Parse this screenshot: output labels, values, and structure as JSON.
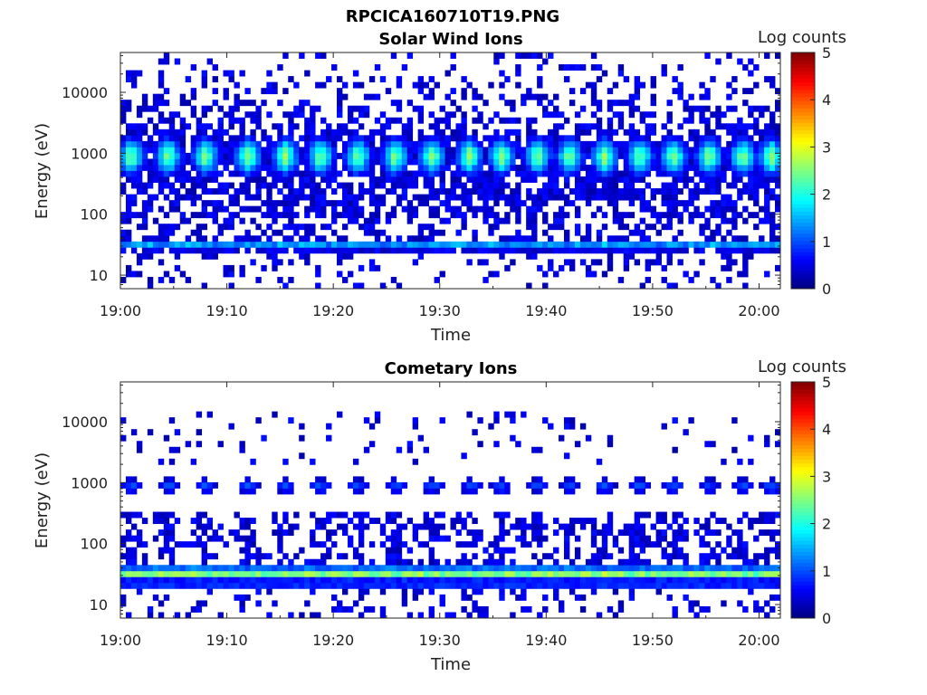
{
  "figure": {
    "title": "RPCICA160710T19.PNG"
  },
  "chart_data": [
    {
      "type": "heatmap",
      "title": "Solar Wind Ions",
      "xlabel": "Time",
      "ylabel": "Energy (eV)",
      "x_range": [
        "19:00",
        "20:02"
      ],
      "x_ticks": [
        "19:00",
        "19:10",
        "19:20",
        "19:30",
        "19:40",
        "19:50",
        "20:00"
      ],
      "y_scale": "log",
      "y_range": [
        6,
        45000
      ],
      "y_ticks": [
        "10",
        "100",
        "1000",
        "10000"
      ],
      "colorbar": {
        "label": "Log counts",
        "range": [
          0,
          5
        ],
        "ticks": [
          "0",
          "1",
          "2",
          "3",
          "4",
          "5"
        ],
        "colormap": "jet"
      },
      "pulse_times_min": [
        1,
        4.5,
        8,
        12,
        15.5,
        18.8,
        22.3,
        25.8,
        29.3,
        32.8,
        35.8,
        39.2,
        42.2,
        45.5,
        48.8,
        52,
        55.3,
        58.5,
        61.2
      ],
      "bands": [
        {
          "name": "solar wind peak",
          "center_eV": 900,
          "peak_log_counts": 2.5
        },
        {
          "name": "low energy band",
          "center_eV": 32,
          "peak_log_counts": 1.6
        }
      ]
    },
    {
      "type": "heatmap",
      "title": "Cometary Ions",
      "xlabel": "Time",
      "ylabel": "Energy (eV)",
      "x_range": [
        "19:00",
        "20:02"
      ],
      "x_ticks": [
        "19:00",
        "19:10",
        "19:20",
        "19:30",
        "19:40",
        "19:50",
        "20:00"
      ],
      "y_scale": "log",
      "y_range": [
        6,
        45000
      ],
      "y_ticks": [
        "10",
        "100",
        "1000",
        "10000"
      ],
      "colorbar": {
        "label": "Log counts",
        "range": [
          0,
          5
        ],
        "ticks": [
          "0",
          "1",
          "2",
          "3",
          "4",
          "5"
        ],
        "colormap": "jet"
      },
      "pulse_times_min": [
        1,
        4.5,
        8,
        12,
        15.5,
        18.8,
        22.3,
        25.8,
        29.3,
        32.8,
        35.8,
        39.2,
        42.2,
        45.5,
        48.8,
        52,
        55.3,
        58.5,
        61.2
      ],
      "bands": [
        {
          "name": "cometary ion band",
          "center_eV": 33,
          "peak_log_counts": 3.0
        },
        {
          "name": "high energy patches",
          "center_eV": 900,
          "peak_log_counts": 1.0
        }
      ]
    }
  ]
}
